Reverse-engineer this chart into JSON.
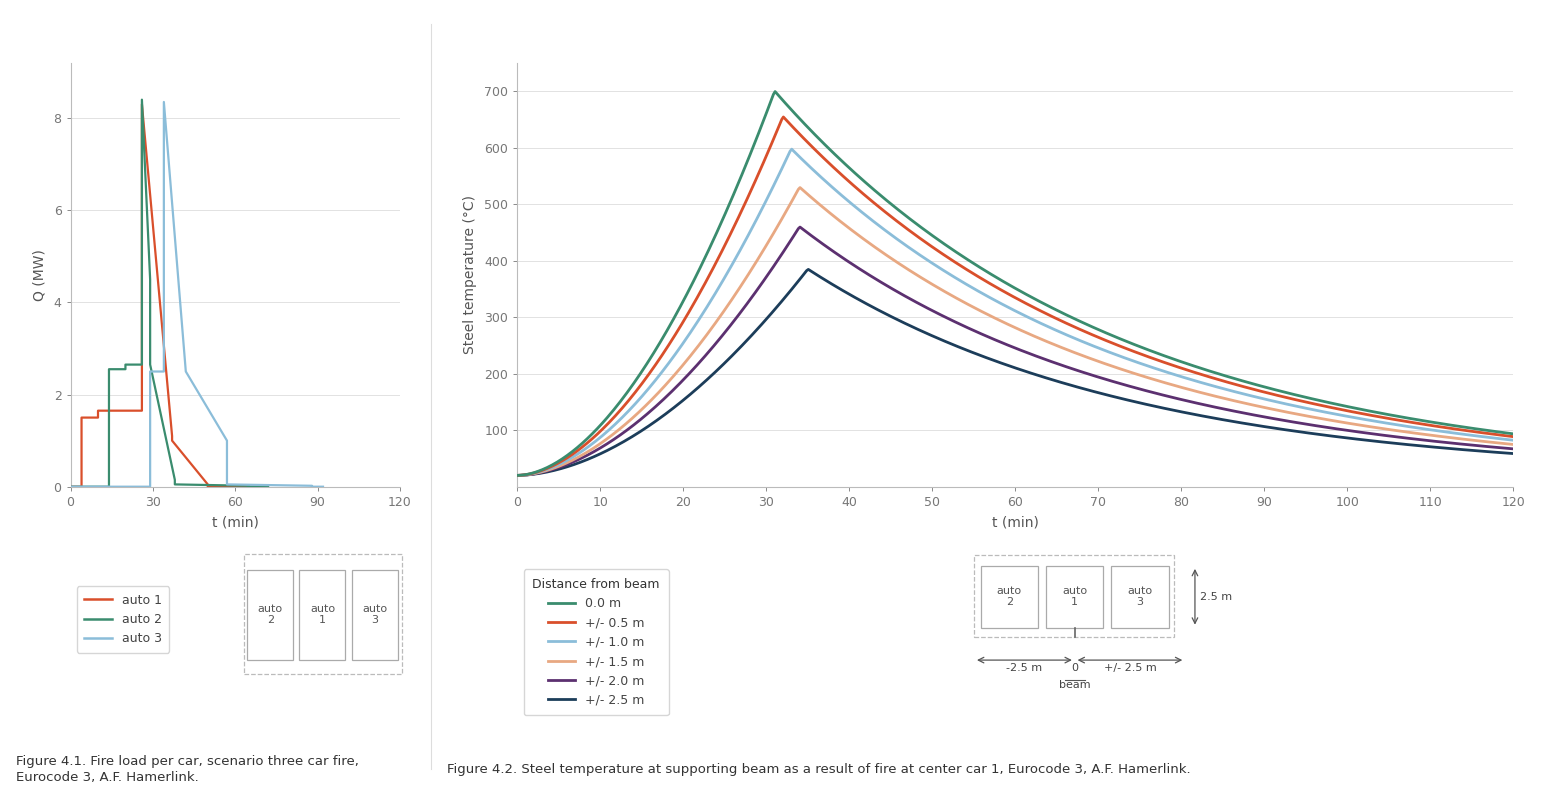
{
  "fig1": {
    "xlabel": "t (min)",
    "ylabel": "Q (MW)",
    "xlim": [
      0,
      120
    ],
    "ylim": [
      0,
      9.2
    ],
    "yticks": [
      0,
      2.0,
      4.0,
      6.0,
      8.0
    ],
    "xticks": [
      0,
      30,
      60,
      90,
      120
    ],
    "auto1_color": "#D94F2B",
    "auto2_color": "#3A8C6E",
    "auto3_color": "#8BBDD9",
    "auto1_x": [
      0,
      4,
      4,
      10,
      10,
      26,
      26,
      37,
      37,
      50,
      50,
      70
    ],
    "auto1_y": [
      0,
      0,
      1.5,
      1.5,
      1.65,
      1.65,
      8.3,
      1.1,
      1.0,
      0.05,
      0.0,
      0.0
    ],
    "auto2_x": [
      0,
      14,
      14,
      20,
      20,
      26,
      26,
      29,
      29,
      38,
      38,
      65,
      65,
      72
    ],
    "auto2_y": [
      0,
      0,
      2.55,
      2.55,
      2.65,
      2.65,
      8.4,
      4.5,
      2.65,
      0.15,
      0.05,
      0.02,
      0.0,
      0.0
    ],
    "auto3_x": [
      0,
      29,
      29,
      34,
      34,
      42,
      42,
      57,
      57,
      88,
      88,
      92
    ],
    "auto3_y": [
      0,
      0,
      2.5,
      2.5,
      8.35,
      2.5,
      2.5,
      1.0,
      0.05,
      0.02,
      0.0,
      0.0
    ],
    "legend_labels": [
      "auto 1",
      "auto 2",
      "auto 3"
    ],
    "caption1": "Figure 4.1. Fire load per car, scenario three car fire,",
    "caption2": "Eurocode 3, A.F. Hamerlink."
  },
  "fig2": {
    "xlabel": "t (min)",
    "ylabel": "Steel temperature (°C)",
    "xlim": [
      0,
      120
    ],
    "ylim": [
      0,
      750
    ],
    "yticks": [
      100,
      200,
      300,
      400,
      500,
      600,
      700
    ],
    "xticks": [
      0,
      10,
      20,
      30,
      40,
      50,
      60,
      70,
      80,
      90,
      100,
      110,
      120
    ],
    "colors": [
      "#3A8C6E",
      "#D94F2B",
      "#8BBDD9",
      "#E8A882",
      "#5C3070",
      "#1C3D5A"
    ],
    "labels": [
      "0.0 m",
      "+/- 0.5 m",
      "+/- 1.0 m",
      "+/- 1.5 m",
      "+/- 2.0 m",
      "+/- 2.5 m"
    ],
    "peak_temps": [
      700,
      655,
      598,
      530,
      460,
      385
    ],
    "peak_times": [
      31,
      32,
      33,
      34,
      34,
      35
    ],
    "legend_title": "Distance from beam",
    "caption": "Figure 4.2. Steel temperature at supporting beam as a result of fire at center car 1, Eurocode 3, A.F. Hamerlink."
  },
  "bg_color": "#FFFFFF"
}
